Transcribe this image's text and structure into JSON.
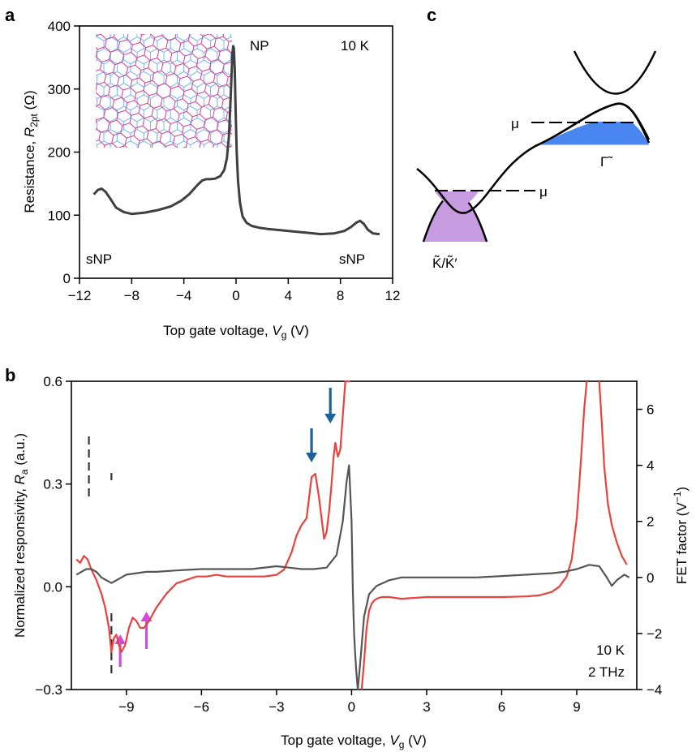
{
  "panel_labels": {
    "a": "a",
    "b": "b",
    "c": "c"
  },
  "chart_data": [
    {
      "panel": "a",
      "type": "line",
      "xlabel": {
        "main": "Top gate voltage, ",
        "italic": "V",
        "sub": "g",
        "unit": " (V)"
      },
      "ylabel": {
        "main": "Resistance, ",
        "italic": "R",
        "sub": "2pt",
        "unit": " (Ω)"
      },
      "xlim": [
        -12,
        12
      ],
      "ylim": [
        0,
        400
      ],
      "xticks": [
        -12,
        -8,
        -4,
        0,
        4,
        8,
        12
      ],
      "xtick_labels": [
        "−12",
        "−8",
        "−4",
        "0",
        "4",
        "8",
        "12"
      ],
      "yticks": [
        0,
        100,
        200,
        300,
        400
      ],
      "ytick_labels": [
        "0",
        "100",
        "200",
        "300",
        "400"
      ],
      "grid": false,
      "annotations": {
        "temperature": "10 K",
        "np": "NP",
        "snp_left": "sNP",
        "snp_right": "sNP"
      },
      "series": [
        {
          "color": "#3f3f3f",
          "x": [
            -10.9,
            -10.6,
            -10.3,
            -10.0,
            -9.6,
            -9.2,
            -8.6,
            -8.0,
            -7.0,
            -6.0,
            -5.0,
            -4.2,
            -3.6,
            -3.0,
            -2.6,
            -2.3,
            -2.0,
            -1.6,
            -1.2,
            -0.9,
            -0.7,
            -0.55,
            -0.45,
            -0.35,
            -0.28,
            -0.22,
            -0.17,
            -0.1,
            -0.03,
            0.05,
            0.15,
            0.3,
            0.5,
            0.8,
            1.2,
            1.8,
            2.5,
            3.5,
            4.5,
            5.5,
            6.5,
            7.5,
            8.3,
            8.8,
            9.2,
            9.5,
            9.8,
            10.1,
            10.5,
            11.0
          ],
          "y": [
            133,
            140,
            142,
            137,
            125,
            112,
            105,
            102,
            104,
            108,
            114,
            123,
            133,
            147,
            155,
            157,
            157,
            158,
            162,
            172,
            190,
            225,
            270,
            320,
            355,
            368,
            365,
            330,
            265,
            200,
            155,
            120,
            98,
            88,
            83,
            80,
            78,
            76,
            74,
            72,
            70,
            71,
            75,
            81,
            88,
            91,
            86,
            77,
            71,
            70
          ]
        }
      ]
    },
    {
      "panel": "b",
      "type": "line",
      "xlabel": {
        "main": "Top gate voltage, ",
        "italic": "V",
        "sub": "g",
        "unit": " (V)"
      },
      "ylabel": {
        "main": "Normalized responsivity, ",
        "italic": "R",
        "sub": "a",
        "unit": " (a.u.)"
      },
      "y2label": {
        "main": "FET factor (V",
        "sup": "−1",
        "unit": ")"
      },
      "xlim": [
        -11.2,
        11.4
      ],
      "ylim": [
        -0.3,
        0.6
      ],
      "y2lim": [
        -4,
        7
      ],
      "xticks": [
        -9,
        -6,
        -3,
        0,
        3,
        6,
        9
      ],
      "xtick_labels": [
        "−9",
        "−6",
        "−3",
        "0",
        "3",
        "6",
        "9"
      ],
      "yticks": [
        -0.3,
        0.0,
        0.3,
        0.6
      ],
      "ytick_labels": [
        "−0.3",
        "0.0",
        "0.3",
        "0.6"
      ],
      "y2ticks": [
        -4,
        -2,
        0,
        2,
        4,
        6
      ],
      "y2tick_labels": [
        "−4",
        "−2",
        "0",
        "2",
        "4",
        "6"
      ],
      "grid": false,
      "annotations": {
        "temperature": "10 K",
        "frequency": "2 THz"
      },
      "dashed_markers_x": [
        -10.5,
        -9.6
      ],
      "blue_arrows_x": [
        -1.6,
        -0.85
      ],
      "magenta_arrows_x": [
        -9.25,
        -8.2
      ],
      "series": [
        {
          "color": "#e8423f",
          "axis": "left",
          "x": [
            -11.0,
            -10.85,
            -10.7,
            -10.55,
            -10.4,
            -10.2,
            -10.0,
            -9.85,
            -9.7,
            -9.6,
            -9.5,
            -9.4,
            -9.3,
            -9.2,
            -9.05,
            -8.9,
            -8.75,
            -8.6,
            -8.45,
            -8.3,
            -8.1,
            -7.8,
            -7.4,
            -7.0,
            -6.6,
            -6.2,
            -5.8,
            -5.4,
            -5.0,
            -4.5,
            -4.0,
            -3.5,
            -3.0,
            -2.7,
            -2.4,
            -2.2,
            -2.0,
            -1.8,
            -1.6,
            -1.45,
            -1.3,
            -1.2,
            -1.1,
            -1.0,
            -0.9,
            -0.8,
            -0.72,
            -0.65,
            -0.55,
            -0.45,
            -0.35,
            -0.25,
            -0.15,
            -0.05
          ],
          "y": [
            0.08,
            0.07,
            0.09,
            0.08,
            0.05,
            0.02,
            -0.02,
            -0.06,
            -0.12,
            -0.19,
            -0.15,
            -0.14,
            -0.17,
            -0.19,
            -0.17,
            -0.12,
            -0.09,
            -0.1,
            -0.12,
            -0.12,
            -0.1,
            -0.06,
            -0.02,
            0.01,
            0.02,
            0.03,
            0.03,
            0.035,
            0.03,
            0.03,
            0.03,
            0.03,
            0.035,
            0.05,
            0.1,
            0.15,
            0.18,
            0.2,
            0.32,
            0.33,
            0.26,
            0.2,
            0.14,
            0.16,
            0.22,
            0.3,
            0.38,
            0.42,
            0.38,
            0.4,
            0.5,
            0.6,
            0.6,
            0.6
          ]
        },
        {
          "color": "#e8423f",
          "axis": "left",
          "x": [
            0.4,
            0.5,
            0.6,
            0.7,
            0.8,
            0.9,
            1.0,
            1.2,
            1.5,
            2.0,
            3.0,
            4.0,
            5.0,
            6.0,
            7.0,
            7.5,
            8.0,
            8.3,
            8.6,
            8.8,
            9.0,
            9.15,
            9.3,
            9.4
          ],
          "y": [
            -0.3,
            -0.22,
            -0.12,
            -0.07,
            -0.05,
            -0.04,
            -0.035,
            -0.03,
            -0.03,
            -0.035,
            -0.03,
            -0.03,
            -0.03,
            -0.03,
            -0.028,
            -0.025,
            -0.015,
            0.0,
            0.03,
            0.08,
            0.2,
            0.35,
            0.52,
            0.6
          ]
        },
        {
          "color": "#e8423f",
          "axis": "left",
          "x": [
            9.9,
            10.0,
            10.1,
            10.25,
            10.4,
            10.6,
            10.8,
            11.0
          ],
          "y": [
            0.6,
            0.48,
            0.35,
            0.24,
            0.18,
            0.13,
            0.09,
            0.065
          ]
        },
        {
          "color": "#555555",
          "axis": "right",
          "x": [
            -11.0,
            -10.8,
            -10.6,
            -10.4,
            -10.2,
            -10.0,
            -9.8,
            -9.6,
            -9.4,
            -9.2,
            -9.0,
            -8.6,
            -8.2,
            -7.8,
            -7.0,
            -6.0,
            -5.0,
            -4.0,
            -3.0,
            -2.5,
            -2.0,
            -1.5,
            -1.0,
            -0.6,
            -0.35,
            -0.2,
            -0.1,
            0.0,
            0.05,
            0.1,
            0.15,
            0.2,
            0.25,
            0.35,
            0.5,
            0.7,
            1.0,
            1.5,
            2.0,
            3.0,
            4.0,
            5.0,
            6.0,
            7.0,
            8.0,
            8.5,
            9.0,
            9.5,
            9.9,
            10.2,
            10.4,
            10.6,
            10.9,
            11.1
          ],
          "y": [
            0.1,
            0.2,
            0.3,
            0.3,
            0.2,
            0.0,
            -0.1,
            -0.2,
            -0.1,
            0.0,
            0.1,
            0.15,
            0.2,
            0.2,
            0.25,
            0.3,
            0.3,
            0.3,
            0.4,
            0.35,
            0.3,
            0.3,
            0.35,
            0.8,
            2.0,
            3.4,
            4.0,
            2.0,
            -0.5,
            -2.0,
            -2.8,
            -3.5,
            -4.0,
            -3.0,
            -1.4,
            -0.6,
            -0.3,
            -0.1,
            0.0,
            0.0,
            0.0,
            0.0,
            0.05,
            0.1,
            0.15,
            0.2,
            0.3,
            0.45,
            0.4,
            0.0,
            -0.3,
            -0.1,
            0.1,
            0.0
          ]
        }
      ]
    }
  ],
  "diagram_c": {
    "mu_left": "μ",
    "mu_right": "μ",
    "label_k": "K̃/K̃′",
    "label_gamma": "Γ̃",
    "fill_purple": "#c79bdf",
    "fill_blue": "#4a86f0"
  },
  "colors": {
    "panel_a_line": "#3f3f3f",
    "panel_b_red": "#e8423f",
    "panel_b_gray": "#555555",
    "arrow_blue": "#1f5f9a",
    "arrow_magenta": "#d24be0",
    "lattice_blue": "#7fb8f0",
    "lattice_magenta": "#d24b9a"
  }
}
